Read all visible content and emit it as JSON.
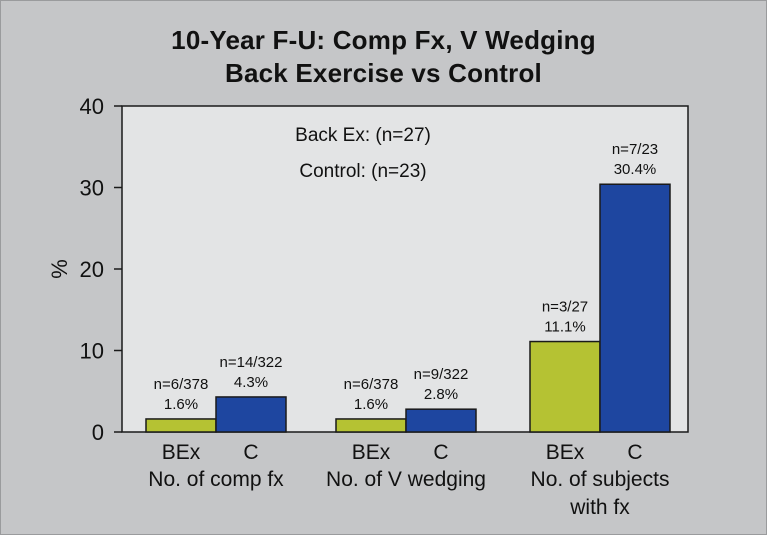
{
  "chart_data": {
    "type": "bar",
    "title": "10-Year F-U: Comp Fx, V Wedging",
    "subtitle": "Back Exercise vs Control",
    "ylabel": "%",
    "ylim": [
      0,
      40
    ],
    "yticks": [
      0,
      10,
      20,
      30,
      40
    ],
    "grid": false,
    "annotations": [
      "Back Ex: (n=27)",
      "Control: (n=23)"
    ],
    "series_colors": {
      "BEx": "#b5c233",
      "C": "#1e46a0"
    },
    "groups": [
      {
        "label": [
          "No. of comp fx"
        ],
        "bars": [
          {
            "series": "BEx",
            "tick": "BEx",
            "value": 1.6,
            "labels": [
              "n=6/378",
              "1.6%"
            ]
          },
          {
            "series": "C",
            "tick": "C",
            "value": 4.3,
            "labels": [
              "n=14/322",
              "4.3%"
            ]
          }
        ]
      },
      {
        "label": [
          "No. of V wedging"
        ],
        "bars": [
          {
            "series": "BEx",
            "tick": "BEx",
            "value": 1.6,
            "labels": [
              "n=6/378",
              "1.6%"
            ]
          },
          {
            "series": "C",
            "tick": "C",
            "value": 2.8,
            "labels": [
              "n=9/322",
              "2.8%"
            ]
          }
        ]
      },
      {
        "label": [
          "No. of subjects",
          "with fx"
        ],
        "bars": [
          {
            "series": "BEx",
            "tick": "BEx",
            "value": 11.1,
            "labels": [
              "n=3/27",
              "11.1%"
            ]
          },
          {
            "series": "C",
            "tick": "C",
            "value": 30.4,
            "labels": [
              "n=7/23",
              "30.4%"
            ]
          }
        ]
      }
    ]
  }
}
